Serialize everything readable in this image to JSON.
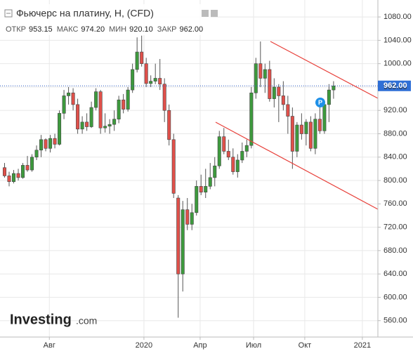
{
  "chart_data": {
    "type": "candlestick",
    "title": "Фьючерс на платину, H, (CFD)",
    "stats": [
      {
        "label": "ОТКР",
        "value": "953.15"
      },
      {
        "label": "МАКС",
        "value": "974.20"
      },
      {
        "label": "МИН",
        "value": "920.10"
      },
      {
        "label": "ЗАКР",
        "value": "962.00"
      }
    ],
    "open": [
      822,
      808,
      798,
      812,
      805,
      826,
      818,
      840,
      852,
      870,
      855,
      872,
      862,
      915,
      945,
      950,
      930,
      888,
      900,
      892,
      925,
      952,
      890,
      893,
      896,
      905,
      938,
      922,
      955,
      990,
      1020,
      1000,
      966,
      970,
      975,
      965,
      920,
      870,
      770,
      640,
      750,
      725,
      745,
      790,
      780,
      790,
      805,
      825,
      875,
      850,
      840,
      815,
      835,
      850,
      860,
      950,
      1000,
      975,
      990,
      940,
      960,
      945,
      930,
      910,
      850,
      895,
      880,
      900,
      855,
      905,
      885,
      930,
      955
    ],
    "high": [
      830,
      815,
      818,
      820,
      830,
      842,
      845,
      860,
      878,
      872,
      878,
      880,
      920,
      955,
      960,
      958,
      940,
      910,
      915,
      935,
      958,
      955,
      915,
      905,
      920,
      945,
      948,
      960,
      1000,
      1045,
      1048,
      1010,
      980,
      1000,
      1008,
      975,
      930,
      880,
      775,
      765,
      770,
      760,
      800,
      810,
      820,
      830,
      840,
      885,
      890,
      870,
      855,
      845,
      865,
      870,
      960,
      1010,
      1038,
      1000,
      1005,
      975,
      965,
      970,
      945,
      925,
      900,
      915,
      905,
      910,
      915,
      930,
      935,
      965,
      970
    ],
    "low": [
      805,
      790,
      795,
      800,
      803,
      815,
      815,
      835,
      840,
      850,
      848,
      855,
      860,
      905,
      930,
      920,
      880,
      880,
      885,
      890,
      920,
      880,
      882,
      880,
      885,
      898,
      915,
      918,
      950,
      985,
      995,
      960,
      960,
      965,
      955,
      900,
      860,
      770,
      565,
      610,
      715,
      715,
      740,
      775,
      770,
      785,
      790,
      820,
      845,
      835,
      810,
      805,
      830,
      840,
      855,
      940,
      960,
      950,
      935,
      925,
      900,
      920,
      880,
      820,
      840,
      870,
      860,
      850,
      845,
      880,
      880,
      900,
      940
    ],
    "close": [
      808,
      798,
      812,
      805,
      826,
      818,
      840,
      852,
      870,
      855,
      872,
      862,
      915,
      945,
      950,
      930,
      888,
      900,
      892,
      925,
      952,
      890,
      893,
      896,
      905,
      938,
      922,
      955,
      990,
      1020,
      1000,
      966,
      970,
      975,
      965,
      920,
      870,
      778,
      640,
      750,
      725,
      745,
      790,
      780,
      790,
      805,
      825,
      875,
      850,
      840,
      815,
      835,
      850,
      860,
      950,
      1000,
      975,
      990,
      940,
      960,
      945,
      930,
      910,
      850,
      895,
      880,
      900,
      855,
      905,
      885,
      930,
      955,
      962
    ],
    "up_color": "#3d9a3d",
    "down_color": "#e0504a",
    "last_price": {
      "value": 962,
      "label": "962.00"
    },
    "ylim": [
      532,
      1109
    ],
    "yticks": [
      {
        "value": 560,
        "label": "560.00"
      },
      {
        "value": 600,
        "label": "600.00"
      },
      {
        "value": 640,
        "label": "640.00"
      },
      {
        "value": 680,
        "label": "680.00"
      },
      {
        "value": 720,
        "label": "720.00"
      },
      {
        "value": 760,
        "label": "760.00"
      },
      {
        "value": 800,
        "label": "800.00"
      },
      {
        "value": 840,
        "label": "840.00"
      },
      {
        "value": 880,
        "label": "880.00"
      },
      {
        "value": 920,
        "label": "920.00"
      },
      {
        "value": 960,
        "label": "960.00"
      },
      {
        "value": 1000,
        "label": "1000.00"
      },
      {
        "value": 1040,
        "label": "1040.00"
      },
      {
        "value": 1080,
        "label": "1080.00"
      }
    ],
    "xlim": [
      -1,
      81.7
    ],
    "xticks": [
      {
        "value": 9.8,
        "label": "Авг"
      },
      {
        "value": 30.5,
        "label": "2020"
      },
      {
        "value": 42.8,
        "label": "Апр"
      },
      {
        "value": 54.5,
        "label": "Июл"
      },
      {
        "value": 65.7,
        "label": "Окт"
      },
      {
        "value": 78.3,
        "label": "2021"
      }
    ],
    "grid": true,
    "marker_label": "P",
    "logo": {
      "brand": "Investing",
      "suffix": ".com"
    }
  }
}
